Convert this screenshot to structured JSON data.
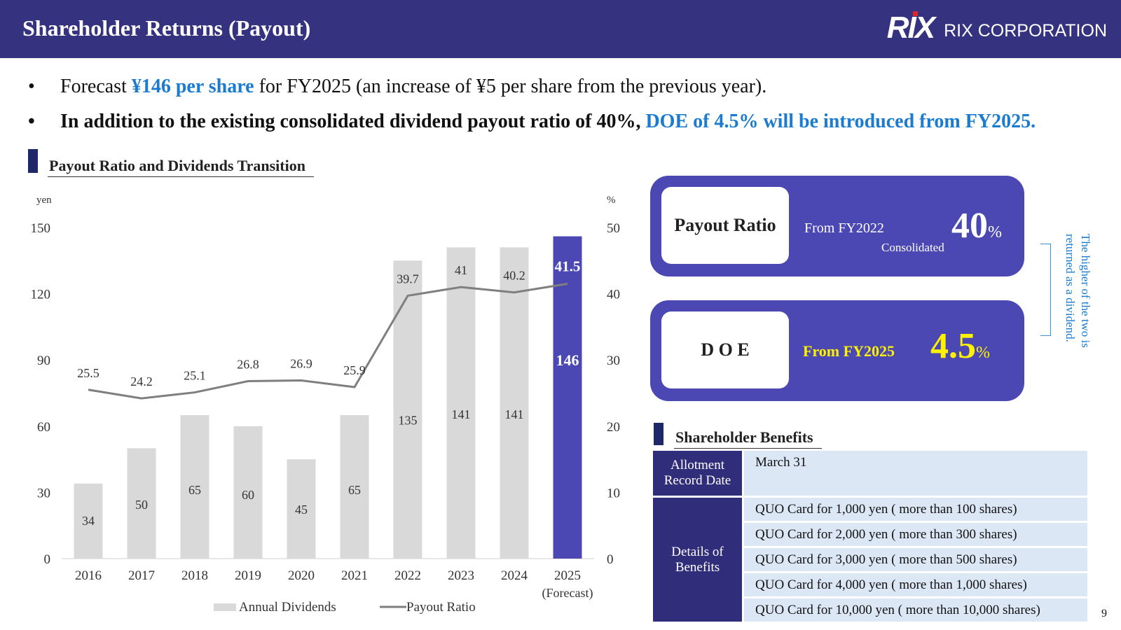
{
  "header": {
    "title": "Shareholder Returns (Payout)",
    "logo_mark": "RIX",
    "logo_name": "RIX CORPORATION"
  },
  "bullets": [
    {
      "pre": "Forecast ",
      "highlight": "¥146 per share",
      "post": " for FY2025 (an increase of ¥5 per share from the previous year)."
    },
    {
      "pre": "In addition to the existing consolidated dividend payout ratio of 40%, ",
      "highlight": "DOE of 4.5% will be introduced from FY2025."
    }
  ],
  "bullet_char": "•",
  "sections": {
    "chart_title": "Payout Ratio and Dividends Transition",
    "benefits_title": "Shareholder Benefits"
  },
  "chart_data": {
    "type": "bar",
    "categories": [
      "2016",
      "2017",
      "2018",
      "2019",
      "2020",
      "2021",
      "2022",
      "2023",
      "2024",
      "2025"
    ],
    "forecast_label": "(Forecast)",
    "series": [
      {
        "name": "Annual Dividends",
        "type": "bar",
        "axis": "left",
        "color": "#d9d9d9",
        "highlight_color": "#4b48b4",
        "highlight_index": 9,
        "values": [
          34,
          50,
          65,
          60,
          45,
          65,
          135,
          141,
          141,
          146
        ]
      },
      {
        "name": "Payout Ratio",
        "type": "line",
        "axis": "right",
        "color": "#7f7f7f",
        "values": [
          25.5,
          24.2,
          25.1,
          26.8,
          26.9,
          25.9,
          39.7,
          41,
          40.2,
          41.5
        ]
      }
    ],
    "left_axis": {
      "unit": "yen",
      "min": 0,
      "max": 150,
      "ticks": [
        0,
        30,
        60,
        90,
        120,
        150
      ]
    },
    "right_axis": {
      "unit": "%",
      "min": 0,
      "max": 50,
      "ticks": [
        0,
        10,
        20,
        30,
        40,
        50
      ]
    },
    "legend_position": "bottom",
    "grid": false
  },
  "panels": {
    "payout": {
      "label": "Payout Ratio",
      "from": "From FY2022",
      "note": "Consolidated",
      "value": "40",
      "unit": "%"
    },
    "doe": {
      "label": "D O E",
      "from": "From FY2025",
      "value": "4.5",
      "unit": "%"
    },
    "side_note": "The higher of the two is returned as a dividend."
  },
  "benefits": {
    "record_label": "Allotment Record Date",
    "record_value": "March 31",
    "details_label": "Details of Benefits",
    "items": [
      "QUO Card for 1,000 yen ( more than 100 shares)",
      "QUO Card for 2,000 yen ( more than 300 shares)",
      "QUO Card for 3,000 yen ( more than 500 shares)",
      "QUO Card for 4,000 yen ( more than 1,000 shares)",
      "QUO Card for 10,000 yen ( more than 10,000 shares)"
    ]
  },
  "page_number": "9"
}
